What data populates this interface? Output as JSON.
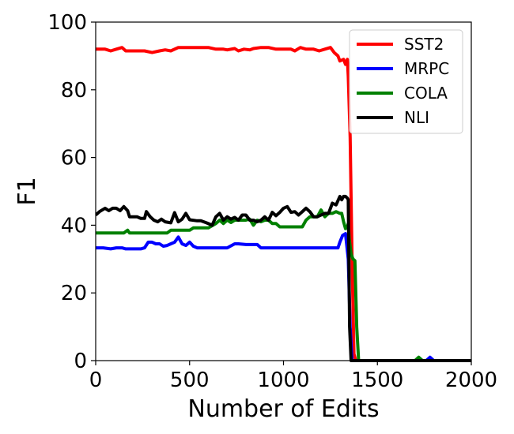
{
  "chart_data": {
    "type": "line",
    "title": "",
    "xlabel": "Number of Edits",
    "ylabel": "F1",
    "xlim": [
      0,
      2000
    ],
    "ylim": [
      0,
      100
    ],
    "xticks": [
      0,
      500,
      1000,
      1500,
      2000
    ],
    "xtick_labels": [
      "0",
      "500",
      "1000",
      "1500",
      "2000"
    ],
    "yticks": [
      0,
      20,
      40,
      60,
      80,
      100
    ],
    "ytick_labels": [
      "0",
      "20",
      "40",
      "60",
      "80",
      "100"
    ],
    "grid": false,
    "legend_position": "top-right",
    "series": [
      {
        "name": "SST2",
        "color": "#ff0000",
        "points": [
          [
            0,
            92
          ],
          [
            50,
            92
          ],
          [
            80,
            91.5
          ],
          [
            110,
            92
          ],
          [
            140,
            92.5
          ],
          [
            160,
            91.5
          ],
          [
            200,
            91.5
          ],
          [
            260,
            91.5
          ],
          [
            300,
            91
          ],
          [
            340,
            91.5
          ],
          [
            370,
            91.8
          ],
          [
            400,
            91.5
          ],
          [
            440,
            92.5
          ],
          [
            480,
            92.5
          ],
          [
            540,
            92.5
          ],
          [
            600,
            92.5
          ],
          [
            640,
            92
          ],
          [
            680,
            92
          ],
          [
            700,
            91.8
          ],
          [
            740,
            92.2
          ],
          [
            760,
            91.5
          ],
          [
            790,
            92
          ],
          [
            820,
            91.8
          ],
          [
            840,
            92.2
          ],
          [
            880,
            92.5
          ],
          [
            920,
            92.5
          ],
          [
            960,
            92
          ],
          [
            1000,
            92
          ],
          [
            1040,
            92
          ],
          [
            1060,
            91.5
          ],
          [
            1090,
            92.5
          ],
          [
            1120,
            92
          ],
          [
            1160,
            92
          ],
          [
            1190,
            91.5
          ],
          [
            1220,
            92
          ],
          [
            1250,
            92.5
          ],
          [
            1270,
            91
          ],
          [
            1290,
            90
          ],
          [
            1300,
            88.5
          ],
          [
            1320,
            89
          ],
          [
            1330,
            87.5
          ],
          [
            1340,
            89
          ],
          [
            1345,
            84
          ],
          [
            1355,
            66
          ],
          [
            1365,
            30
          ],
          [
            1375,
            2
          ],
          [
            1385,
            0
          ],
          [
            1400,
            0
          ],
          [
            1500,
            0
          ],
          [
            1700,
            0
          ],
          [
            2000,
            0
          ]
        ]
      },
      {
        "name": "MRPC",
        "color": "#0000ff",
        "points": [
          [
            0,
            33.3
          ],
          [
            40,
            33.3
          ],
          [
            80,
            33
          ],
          [
            110,
            33.3
          ],
          [
            140,
            33.3
          ],
          [
            160,
            33
          ],
          [
            200,
            33
          ],
          [
            240,
            33
          ],
          [
            260,
            33.3
          ],
          [
            280,
            35
          ],
          [
            300,
            35
          ],
          [
            320,
            34.5
          ],
          [
            340,
            34.5
          ],
          [
            360,
            33.8
          ],
          [
            380,
            34
          ],
          [
            400,
            34.5
          ],
          [
            420,
            35
          ],
          [
            440,
            36.5
          ],
          [
            460,
            34.5
          ],
          [
            480,
            34
          ],
          [
            500,
            35
          ],
          [
            520,
            33.8
          ],
          [
            540,
            33.3
          ],
          [
            580,
            33.3
          ],
          [
            620,
            33.3
          ],
          [
            660,
            33.3
          ],
          [
            700,
            33.3
          ],
          [
            740,
            34.5
          ],
          [
            760,
            34.5
          ],
          [
            800,
            34.3
          ],
          [
            840,
            34.3
          ],
          [
            860,
            34.3
          ],
          [
            880,
            33.3
          ],
          [
            920,
            33.3
          ],
          [
            960,
            33.3
          ],
          [
            1000,
            33.3
          ],
          [
            1040,
            33.3
          ],
          [
            1100,
            33.3
          ],
          [
            1160,
            33.3
          ],
          [
            1200,
            33.3
          ],
          [
            1260,
            33.3
          ],
          [
            1290,
            33.3
          ],
          [
            1300,
            35
          ],
          [
            1315,
            37
          ],
          [
            1330,
            37.5
          ],
          [
            1345,
            30
          ],
          [
            1355,
            10
          ],
          [
            1365,
            0
          ],
          [
            1400,
            0
          ],
          [
            1500,
            0
          ],
          [
            1700,
            0
          ],
          [
            1760,
            0
          ],
          [
            1780,
            1
          ],
          [
            1800,
            0
          ],
          [
            2000,
            0
          ]
        ]
      },
      {
        "name": "COLA",
        "color": "#008000",
        "points": [
          [
            0,
            37.7
          ],
          [
            50,
            37.7
          ],
          [
            100,
            37.7
          ],
          [
            150,
            37.7
          ],
          [
            170,
            38.5
          ],
          [
            180,
            37.7
          ],
          [
            220,
            37.7
          ],
          [
            260,
            37.7
          ],
          [
            300,
            37.7
          ],
          [
            350,
            37.7
          ],
          [
            380,
            37.7
          ],
          [
            400,
            38.5
          ],
          [
            440,
            38.5
          ],
          [
            500,
            38.5
          ],
          [
            520,
            39.2
          ],
          [
            560,
            39.2
          ],
          [
            600,
            39.2
          ],
          [
            640,
            40.5
          ],
          [
            660,
            41.5
          ],
          [
            680,
            40.5
          ],
          [
            700,
            41.5
          ],
          [
            720,
            40.8
          ],
          [
            740,
            41.5
          ],
          [
            760,
            41.5
          ],
          [
            780,
            41.5
          ],
          [
            800,
            41.5
          ],
          [
            820,
            41.8
          ],
          [
            840,
            40
          ],
          [
            860,
            41.5
          ],
          [
            880,
            41
          ],
          [
            900,
            41.5
          ],
          [
            920,
            41.5
          ],
          [
            940,
            40.5
          ],
          [
            960,
            40.5
          ],
          [
            980,
            39.5
          ],
          [
            1000,
            39.5
          ],
          [
            1040,
            39.5
          ],
          [
            1080,
            39.5
          ],
          [
            1100,
            39.5
          ],
          [
            1120,
            41.5
          ],
          [
            1140,
            42.5
          ],
          [
            1160,
            42.5
          ],
          [
            1180,
            42.5
          ],
          [
            1200,
            44.5
          ],
          [
            1220,
            42.5
          ],
          [
            1240,
            43.5
          ],
          [
            1260,
            43.5
          ],
          [
            1280,
            44
          ],
          [
            1300,
            43.5
          ],
          [
            1310,
            43.5
          ],
          [
            1320,
            41
          ],
          [
            1330,
            39
          ],
          [
            1340,
            39.5
          ],
          [
            1345,
            40.5
          ],
          [
            1350,
            36
          ],
          [
            1360,
            31.5
          ],
          [
            1370,
            30
          ],
          [
            1380,
            29.5
          ],
          [
            1390,
            10
          ],
          [
            1400,
            0
          ],
          [
            1450,
            0
          ],
          [
            1500,
            0
          ],
          [
            1700,
            0
          ],
          [
            1720,
            1
          ],
          [
            1740,
            0
          ],
          [
            2000,
            0
          ]
        ]
      },
      {
        "name": "NLI",
        "color": "#000000",
        "points": [
          [
            0,
            43
          ],
          [
            20,
            44
          ],
          [
            50,
            45
          ],
          [
            70,
            44.3
          ],
          [
            90,
            45
          ],
          [
            110,
            45
          ],
          [
            130,
            44.3
          ],
          [
            150,
            45.5
          ],
          [
            170,
            44.3
          ],
          [
            180,
            42.5
          ],
          [
            200,
            42.5
          ],
          [
            220,
            42.5
          ],
          [
            240,
            42
          ],
          [
            260,
            42
          ],
          [
            270,
            44
          ],
          [
            290,
            42.5
          ],
          [
            310,
            41.5
          ],
          [
            330,
            41
          ],
          [
            350,
            41.8
          ],
          [
            370,
            41
          ],
          [
            400,
            40.7
          ],
          [
            420,
            43.7
          ],
          [
            440,
            41
          ],
          [
            460,
            41.8
          ],
          [
            480,
            43.5
          ],
          [
            500,
            41.6
          ],
          [
            540,
            41.3
          ],
          [
            560,
            41.3
          ],
          [
            590,
            40.7
          ],
          [
            620,
            40
          ],
          [
            640,
            42.5
          ],
          [
            660,
            43.5
          ],
          [
            680,
            41.5
          ],
          [
            700,
            42.5
          ],
          [
            720,
            41.8
          ],
          [
            740,
            42.3
          ],
          [
            760,
            41.5
          ],
          [
            780,
            43
          ],
          [
            800,
            43
          ],
          [
            820,
            41.5
          ],
          [
            840,
            41.5
          ],
          [
            860,
            41
          ],
          [
            880,
            41.5
          ],
          [
            900,
            42.5
          ],
          [
            920,
            41.5
          ],
          [
            940,
            43.8
          ],
          [
            960,
            42.8
          ],
          [
            980,
            43.8
          ],
          [
            1000,
            45
          ],
          [
            1020,
            45.5
          ],
          [
            1040,
            43.8
          ],
          [
            1060,
            44
          ],
          [
            1080,
            43
          ],
          [
            1100,
            44
          ],
          [
            1120,
            45
          ],
          [
            1140,
            44
          ],
          [
            1160,
            42.5
          ],
          [
            1180,
            42.5
          ],
          [
            1200,
            43
          ],
          [
            1220,
            43.5
          ],
          [
            1240,
            43.5
          ],
          [
            1260,
            46.5
          ],
          [
            1280,
            46
          ],
          [
            1300,
            48.5
          ],
          [
            1310,
            47.5
          ],
          [
            1320,
            48.5
          ],
          [
            1330,
            48.5
          ],
          [
            1340,
            48
          ],
          [
            1345,
            47.5
          ],
          [
            1352,
            10
          ],
          [
            1360,
            0
          ],
          [
            1400,
            0
          ],
          [
            1500,
            0
          ],
          [
            1700,
            0
          ],
          [
            2000,
            0
          ]
        ]
      }
    ]
  }
}
